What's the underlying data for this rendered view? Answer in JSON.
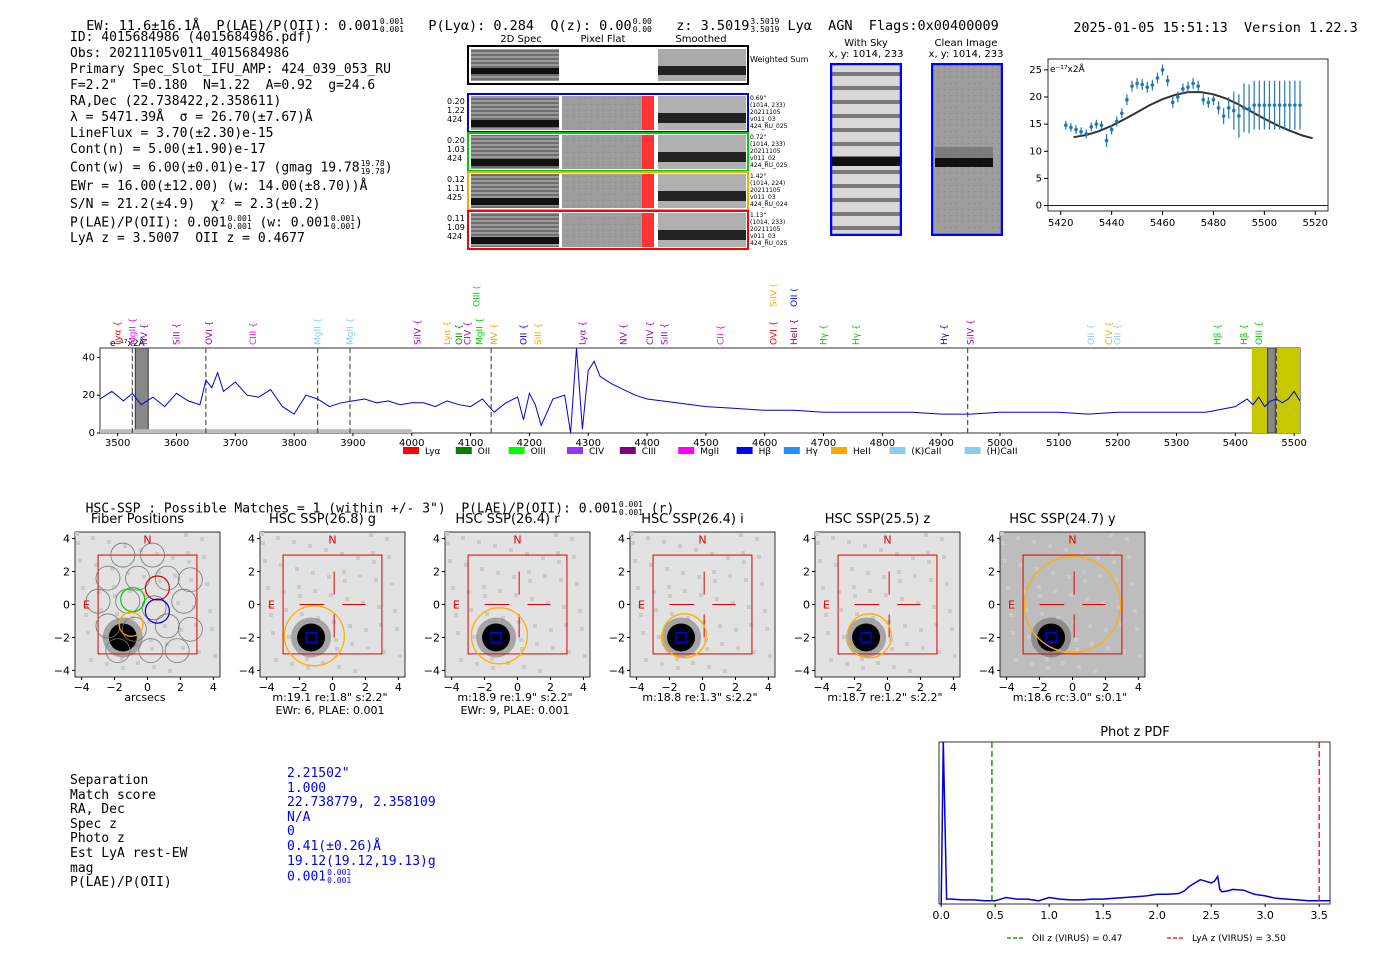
{
  "header": {
    "ew": "EW: 11.6±16.1Å",
    "plae": "P(LAE)/P(OII): 0.001",
    "plae_hi": "0.001",
    "plae_lo": "0.001",
    "plya": "P(Lyα): 0.284",
    "qz": "Q(z): 0.00",
    "qz_hi": "0.00",
    "qz_lo": "0.00",
    "z": "z: 3.5019",
    "z_hi": "3.5019",
    "z_lo": "3.5019",
    "line": "Lyα",
    "agn": "AGN",
    "flags": "Flags:0x00400009",
    "datetime": "2025-01-05 15:51:13",
    "version": "Version 1.22.3"
  },
  "info": {
    "id": "ID: 4015684986 (4015684986.pdf)",
    "obs": "Obs: 20211105v011_4015684986",
    "slot": "Primary Spec_Slot_IFU_AMP: 424_039_053_RU",
    "fit": "F=2.2\"  T=0.180  N=1.22  A=0.92  g=24.6",
    "radec": "RA,Dec (22.738422,2.358611)",
    "lambda": "λ = 5471.39Å  σ = 26.70(±7.67)Å",
    "lineflux": "LineFlux = 3.70(±2.30)e-15",
    "contn": "Cont(n) = 5.00(±1.90)e-17",
    "contw": "Cont(w) = 6.00(±0.01)e-17 (gmag 19.78",
    "contw_hi": "19.78",
    "contw_lo": "19.78",
    "contw_end": ")",
    "ewr": "EWr = 16.00(±12.00) (w: 14.00(±8.70))Å",
    "sn": "S/N = 21.2(±4.9)  χ² = 2.3(±0.2)",
    "plae": "P(LAE)/P(OII): 0.001",
    "plae_hi": "0.001",
    "plae_lo": "0.001",
    "plae_w": "(w: 0.001",
    "plae_w_hi": "0.001",
    "plae_w_lo": "0.001",
    "plae_end": ")",
    "lyaz": "LyA z = 3.5007  OII z = 0.4677"
  },
  "cutouts": {
    "col_2d": "2D Spec",
    "col_flat": "Pixel Flat",
    "col_smooth": "Smoothed",
    "weighted": "Weighted Sum",
    "rows": [
      {
        "left": [
          "0.20",
          "1.22",
          "424"
        ],
        "right": [
          "0.69\"",
          "(1014, 233)",
          "20211105",
          "v011_03",
          "424_RU_025"
        ],
        "color": "#0000ff"
      },
      {
        "left": [
          "0.20",
          "1.03",
          "424"
        ],
        "right": [
          "0.72\"",
          "(1014, 233)",
          "20211105",
          "v011_02",
          "424_RU_025"
        ],
        "color": "#00cc00"
      },
      {
        "left": [
          "0.12",
          "1.11",
          "425"
        ],
        "right": [
          "1.42\"",
          "(1014, 224)",
          "20211105",
          "v011_03",
          "424_RU_024"
        ],
        "color": "#ffa500"
      },
      {
        "left": [
          "0.11",
          "1.09",
          "424"
        ],
        "right": [
          "1.13\"",
          "(1014, 233)",
          "20211105",
          "v011_03",
          "424_RU_025"
        ],
        "color": "#ff0000"
      }
    ]
  },
  "sky": {
    "with_sky_title": "With Sky",
    "with_sky_xy": "x, y: 1014, 233",
    "clean_title": "Clean Image",
    "clean_xy": "x, y: 1014, 233"
  },
  "zoom_chart_data": {
    "type": "scatter",
    "ylabel_unit": "e⁻¹⁷x2Å",
    "xlim": [
      5415,
      5525
    ],
    "ylim": [
      -1,
      27
    ],
    "xticks": [
      5420,
      5440,
      5460,
      5480,
      5500,
      5520
    ],
    "yticks": [
      0,
      5,
      10,
      15,
      20,
      25
    ],
    "x": [
      5422,
      5424,
      5426,
      5428,
      5430,
      5432,
      5434,
      5436,
      5438,
      5440,
      5442,
      5444,
      5446,
      5448,
      5450,
      5452,
      5454,
      5456,
      5458,
      5460,
      5462,
      5464,
      5466,
      5468,
      5470,
      5472,
      5474,
      5476,
      5478,
      5480,
      5482,
      5484,
      5486,
      5488,
      5490,
      5492,
      5494,
      5496,
      5498,
      5500,
      5502,
      5504,
      5506,
      5508,
      5510,
      5512,
      5514
    ],
    "y": [
      14.8,
      14.4,
      14.0,
      13.6,
      13.2,
      14.5,
      15.0,
      14.8,
      12.0,
      14.0,
      15.5,
      17.0,
      19.5,
      22.0,
      22.5,
      22.3,
      21.8,
      22.2,
      23.5,
      25.0,
      23.0,
      19.0,
      20.0,
      21.5,
      21.8,
      22.5,
      22.0,
      19.5,
      19.0,
      19.5,
      18.0,
      16.5,
      18.0,
      17.5,
      16.5,
      18.0,
      17.8,
      18.5,
      18.5,
      18.5,
      18.5,
      18.5,
      18.5,
      18.5,
      18.5,
      18.5,
      18.5
    ],
    "yerr": [
      0.8,
      0.8,
      0.8,
      0.8,
      0.8,
      0.8,
      0.8,
      0.8,
      1.2,
      0.9,
      0.9,
      0.9,
      1.0,
      1.0,
      1.0,
      1.0,
      1.0,
      1.0,
      1.0,
      1.0,
      1.0,
      1.0,
      1.0,
      1.0,
      1.0,
      1.0,
      1.0,
      1.0,
      1.0,
      1.0,
      1.2,
      1.5,
      2.0,
      3.5,
      4.0,
      4.5,
      4.5,
      4.5,
      4.5,
      4.5,
      4.5,
      4.5,
      4.5,
      4.5,
      4.5,
      4.5,
      4.5
    ],
    "model_x": [
      5425,
      5430,
      5435,
      5440,
      5445,
      5450,
      5455,
      5460,
      5465,
      5470,
      5475,
      5480,
      5485,
      5490,
      5495,
      5500,
      5505,
      5510,
      5515,
      5519
    ],
    "model_y": [
      12.6,
      13.0,
      13.7,
      14.7,
      15.9,
      17.2,
      18.5,
      19.6,
      20.4,
      20.9,
      20.9,
      20.5,
      19.7,
      18.6,
      17.3,
      16.0,
      14.8,
      13.8,
      12.9,
      12.4
    ]
  },
  "spec_chart_data": {
    "type": "line",
    "ylabel_unit": "e⁻¹⁷x2Å",
    "xlim": [
      3470,
      5510
    ],
    "ylim": [
      0,
      45
    ],
    "xticks": [
      3500,
      3600,
      3700,
      3800,
      3900,
      4000,
      4100,
      4200,
      4300,
      4400,
      4500,
      4600,
      4700,
      4800,
      4900,
      5000,
      5100,
      5200,
      5300,
      5400,
      5500
    ],
    "yticks": [
      0,
      20,
      40
    ],
    "series_x": [
      3470,
      3490,
      3510,
      3525,
      3540,
      3560,
      3580,
      3600,
      3620,
      3640,
      3650,
      3660,
      3670,
      3680,
      3700,
      3720,
      3740,
      3760,
      3780,
      3800,
      3820,
      3840,
      3860,
      3880,
      3900,
      3920,
      3940,
      3960,
      3980,
      4000,
      4020,
      4040,
      4060,
      4080,
      4100,
      4120,
      4140,
      4160,
      4180,
      4190,
      4200,
      4210,
      4220,
      4240,
      4260,
      4270,
      4280,
      4290,
      4300,
      4310,
      4320,
      4340,
      4360,
      4380,
      4400,
      4450,
      4500,
      4550,
      4600,
      4650,
      4700,
      4750,
      4800,
      4850,
      4900,
      4950,
      5000,
      5050,
      5100,
      5150,
      5200,
      5250,
      5300,
      5350,
      5400,
      5420,
      5430,
      5440,
      5450,
      5460,
      5470,
      5480,
      5490,
      5500,
      5510
    ],
    "series_y": [
      18,
      22,
      17,
      21,
      15,
      19,
      14,
      21,
      17,
      15,
      28,
      24,
      32,
      22,
      27,
      20,
      19,
      23,
      14,
      10,
      20,
      18,
      14,
      16,
      17,
      18,
      16,
      17,
      15,
      16,
      16,
      14,
      17,
      15,
      14,
      18,
      11,
      16,
      19,
      7,
      21,
      15,
      4,
      18,
      20,
      0,
      45,
      2,
      33,
      38,
      30,
      26,
      23,
      20,
      18,
      16,
      14,
      13,
      12,
      12,
      11,
      11,
      11,
      11,
      10,
      10,
      11,
      11,
      11,
      10,
      11,
      11,
      11,
      11,
      14,
      18,
      15,
      19,
      14,
      17,
      18,
      16,
      18,
      22,
      17
    ],
    "dashed_lines": [
      3525,
      3650,
      3840,
      3895,
      4135,
      4945,
      5470
    ],
    "hatch_region": [
      3530,
      3552
    ],
    "yellow_region": [
      5428,
      5510
    ],
    "labels": [
      {
        "t": "Lyα",
        "x": 3500,
        "c": "#ff0000"
      },
      {
        "t": "MgII",
        "x": 3525,
        "c": "#ff00ff"
      },
      {
        "t": "NV",
        "x": 3545,
        "c": "#9900cc"
      },
      {
        "t": "SiII",
        "x": 3600,
        "c": "#9900cc"
      },
      {
        "t": "OVI",
        "x": 3655,
        "c": "#9900cc"
      },
      {
        "t": "CIII",
        "x": 3730,
        "c": "#ff00ff"
      },
      {
        "t": "MgII",
        "x": 3840,
        "c": "#87cefa"
      },
      {
        "t": "MgII",
        "x": 3895,
        "c": "#87cefa"
      },
      {
        "t": "SiIV",
        "x": 4010,
        "c": "#9900cc"
      },
      {
        "t": "Lyα",
        "x": 4060,
        "c": "#ffa500"
      },
      {
        "t": "OII",
        "x": 4080,
        "c": "#008800"
      },
      {
        "t": "CIV",
        "x": 4095,
        "c": "#9900cc"
      },
      {
        "t": "MgII",
        "x": 4115,
        "c": "#00cc00"
      },
      {
        "t": "NV",
        "x": 4140,
        "c": "#ffa500"
      },
      {
        "t": "OII",
        "x": 4190,
        "c": "#0000ff"
      },
      {
        "t": "SiII",
        "x": 4215,
        "c": "#ffa500"
      },
      {
        "t": "Lyα",
        "x": 4290,
        "c": "#9900cc"
      },
      {
        "t": "NV",
        "x": 4360,
        "c": "#9900cc"
      },
      {
        "t": "CIV",
        "x": 4405,
        "c": "#9900cc"
      },
      {
        "t": "SiII",
        "x": 4430,
        "c": "#9900cc"
      },
      {
        "t": "CII",
        "x": 4525,
        "c": "#ff00ff"
      },
      {
        "t": "OVI",
        "x": 4615,
        "c": "#ff0000"
      },
      {
        "t": "HeII",
        "x": 4650,
        "c": "#990066"
      },
      {
        "t": "Hγ",
        "x": 4700,
        "c": "#00cc00"
      },
      {
        "t": "Hγ",
        "x": 4755,
        "c": "#00cc00"
      },
      {
        "t": "Hγ",
        "x": 4905,
        "c": "#0000ff"
      },
      {
        "t": "SiIV",
        "x": 4950,
        "c": "#9900cc"
      },
      {
        "t": "OII",
        "x": 5155,
        "c": "#87cefa"
      },
      {
        "t": "CIV",
        "x": 5185,
        "c": "#ffa500"
      },
      {
        "t": "OII",
        "x": 5200,
        "c": "#87cefa"
      },
      {
        "t": "Hβ",
        "x": 5370,
        "c": "#00cc00"
      },
      {
        "t": "Hβ",
        "x": 5415,
        "c": "#00cc00"
      },
      {
        "t": "OIII",
        "x": 5440,
        "c": "#00cc00"
      }
    ],
    "top_labels": [
      {
        "t": "OIII",
        "x": 4110,
        "c": "#00cc00"
      },
      {
        "t": "SiIV",
        "x": 4615,
        "c": "#ffa500"
      },
      {
        "t": "OII",
        "x": 4650,
        "c": "#0000ff"
      }
    ],
    "legend": [
      {
        "t": "Lyα",
        "c": "#ff0000"
      },
      {
        "t": "OII",
        "c": "#008000"
      },
      {
        "t": "OIII",
        "c": "#00ff00"
      },
      {
        "t": "CIV",
        "c": "#9933ff"
      },
      {
        "t": "CIII",
        "c": "#800080"
      },
      {
        "t": "MgII",
        "c": "#ff00ff"
      },
      {
        "t": "Hβ",
        "c": "#0000ff"
      },
      {
        "t": "Hγ",
        "c": "#1e90ff"
      },
      {
        "t": "HeII",
        "c": "#ffa500"
      },
      {
        "t": "(K)CaII",
        "c": "#87ceeb"
      },
      {
        "t": "(H)CaII",
        "c": "#87ceeb"
      }
    ]
  },
  "hsc": {
    "summary": "HSC-SSP : Possible Matches = 1 (within +/- 3\")  P(LAE)/P(OII): 0.001",
    "summary_hi": "0.001",
    "summary_lo": "0.001",
    "summary_end": "(r)",
    "xticks": [
      "−4",
      "−2",
      "0",
      "2",
      "4"
    ],
    "yticks": [
      "4",
      "2",
      "0",
      "−2",
      "−4"
    ],
    "north": "N",
    "east": "E",
    "panels": [
      {
        "title": "Fiber Positions",
        "cap1": "arcsecs",
        "cap2": ""
      },
      {
        "title": "HSC SSP(26.8) g",
        "cap1": "m:19.1  re:1.8\"  s:2.2\"",
        "cap2": "EWr: 6, PLAE: 0.001"
      },
      {
        "title": "HSC SSP(26.4) r",
        "cap1": "m:18.9  re:1.9\"  s:2.2\"",
        "cap2": "EWr: 9, PLAE: 0.001"
      },
      {
        "title": "HSC SSP(26.4) i",
        "cap1": "m:18.8  re:1.3\"  s:2.2\"",
        "cap2": ""
      },
      {
        "title": "HSC SSP(25.5) z",
        "cap1": "m:18.7  re:1.2\"  s:2.2\"",
        "cap2": ""
      },
      {
        "title": "HSC SSP(24.7) y",
        "cap1": "m:18.6  rc:3.0\"  s:0.1\"",
        "cap2": ""
      }
    ]
  },
  "match": {
    "labels": [
      "Separation",
      "Match score",
      "RA, Dec",
      "Spec z",
      "Photo z",
      "Est LyA rest-EW",
      "mag",
      "P(LAE)/P(OII)"
    ],
    "values": [
      "2.21502\"",
      "1.000",
      "22.738779, 2.358109",
      "N/A",
      "0",
      "0.41(±0.26)Å",
      "19.12(19.12,19.13)g",
      "0.001"
    ],
    "plae_hi": "0.001",
    "plae_lo": "0.001"
  },
  "photz_chart_data": {
    "type": "line",
    "title": "Phot z PDF",
    "xlim": [
      -0.02,
      3.6
    ],
    "ylim": [
      0,
      1
    ],
    "xticks": [
      "0.0",
      "0.5",
      "1.0",
      "1.5",
      "2.0",
      "2.5",
      "3.0",
      "3.5"
    ],
    "x": [
      0.0,
      0.02,
      0.05,
      0.1,
      0.2,
      0.3,
      0.4,
      0.5,
      0.6,
      0.7,
      0.8,
      0.9,
      1.0,
      1.1,
      1.2,
      1.3,
      1.4,
      1.5,
      1.6,
      1.7,
      1.8,
      1.9,
      2.0,
      2.1,
      2.2,
      2.25,
      2.3,
      2.35,
      2.4,
      2.45,
      2.5,
      2.53,
      2.56,
      2.58,
      2.6,
      2.65,
      2.7,
      2.8,
      2.9,
      3.0,
      3.1,
      3.2,
      3.3,
      3.4,
      3.5,
      3.6
    ],
    "y": [
      0.0,
      1.0,
      0.03,
      0.03,
      0.025,
      0.025,
      0.02,
      0.02,
      0.04,
      0.03,
      0.03,
      0.02,
      0.04,
      0.03,
      0.025,
      0.025,
      0.03,
      0.03,
      0.035,
      0.04,
      0.045,
      0.05,
      0.06,
      0.06,
      0.065,
      0.08,
      0.11,
      0.13,
      0.15,
      0.14,
      0.13,
      0.14,
      0.17,
      0.09,
      0.075,
      0.08,
      0.09,
      0.085,
      0.06,
      0.05,
      0.035,
      0.03,
      0.025,
      0.02,
      0.02,
      0.02
    ],
    "oii_z": 0.47,
    "lya_z": 3.5,
    "legend": [
      {
        "t": "OII z (VIRUS) = 0.47",
        "c": "#008000"
      },
      {
        "t": "LyA z (VIRUS) = 3.50",
        "c": "#ff0000"
      }
    ]
  }
}
